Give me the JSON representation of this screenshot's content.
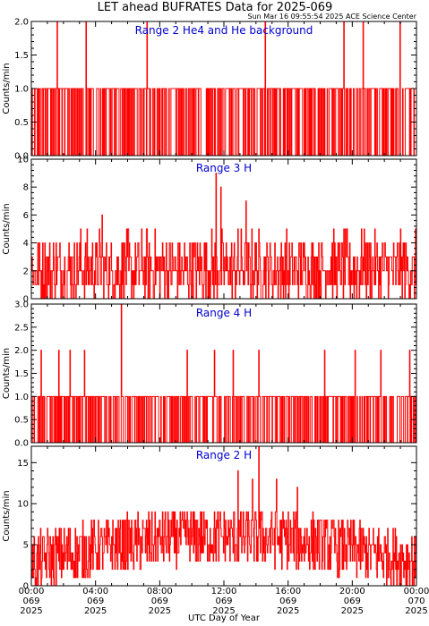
{
  "title": "LET ahead BUFRATES Data for 2025-069",
  "subtitle": "Sun Mar 16 09:55:54 2025 ACE Science Center",
  "xlabel": "UTC Day of Year",
  "x_ticks": [
    [
      "00:00",
      "069",
      "2025"
    ],
    [
      "04:00",
      "069",
      "2025"
    ],
    [
      "08:00",
      "069",
      "2025"
    ],
    [
      "12:00",
      "069",
      "2025"
    ],
    [
      "16:00",
      "069",
      "2025"
    ],
    [
      "20:00",
      "069",
      "2025"
    ],
    [
      "00:00",
      "070",
      "2025"
    ]
  ],
  "colors": {
    "series": "#ff0000",
    "panel_title": "#0000d0"
  },
  "chart_data": [
    {
      "type": "line",
      "title": "Range 2 He4 and He background",
      "ylabel": "Counts/min",
      "ylim": [
        0,
        2.0
      ],
      "yticks": [
        "0.0",
        "0.5",
        "1.0",
        "1.5",
        "2.0"
      ],
      "x_range_hours": [
        0,
        24
      ],
      "series": [
        {
          "color": "#ff0000",
          "typical_range": [
            0,
            1
          ],
          "spikes": [
            {
              "hour": 1.6,
              "value": 2
            },
            {
              "hour": 3.4,
              "value": 2
            },
            {
              "hour": 7.2,
              "value": 2
            },
            {
              "hour": 14.6,
              "value": 2
            },
            {
              "hour": 19.5,
              "value": 2
            },
            {
              "hour": 20.7,
              "value": 2
            },
            {
              "hour": 23.0,
              "value": 2
            }
          ]
        }
      ]
    },
    {
      "type": "line",
      "title": "Range 3 H",
      "ylabel": "Counts/min",
      "ylim": [
        0,
        10
      ],
      "yticks": [
        "0",
        "2",
        "4",
        "6",
        "8",
        "10"
      ],
      "x_range_hours": [
        0,
        24
      ],
      "series": [
        {
          "color": "#ff0000",
          "typical_range": [
            0,
            4
          ],
          "spikes": [
            {
              "hour": 11.5,
              "value": 9
            },
            {
              "hour": 11.8,
              "value": 8
            },
            {
              "hour": 4.4,
              "value": 6
            },
            {
              "hour": 13.4,
              "value": 7
            }
          ]
        }
      ]
    },
    {
      "type": "line",
      "title": "Range 4 H",
      "ylabel": "Counts/min",
      "ylim": [
        0,
        3.0
      ],
      "yticks": [
        "0.0",
        "0.5",
        "1.0",
        "1.5",
        "2.0",
        "2.5",
        "3.0"
      ],
      "x_range_hours": [
        0,
        24
      ],
      "series": [
        {
          "color": "#ff0000",
          "typical_range": [
            0,
            1
          ],
          "spikes": [
            {
              "hour": 5.6,
              "value": 3
            },
            {
              "hour": 0.6,
              "value": 2
            },
            {
              "hour": 1.7,
              "value": 2
            },
            {
              "hour": 2.4,
              "value": 2
            },
            {
              "hour": 3.3,
              "value": 2
            },
            {
              "hour": 9.7,
              "value": 2
            },
            {
              "hour": 11.4,
              "value": 2
            },
            {
              "hour": 12.6,
              "value": 2
            },
            {
              "hour": 14.2,
              "value": 2
            },
            {
              "hour": 18.3,
              "value": 2
            },
            {
              "hour": 20.2,
              "value": 2
            },
            {
              "hour": 21.8,
              "value": 2
            },
            {
              "hour": 23.6,
              "value": 2
            }
          ]
        }
      ]
    },
    {
      "type": "line",
      "title": "Range 2 H",
      "ylabel": "Counts/min",
      "ylim": [
        0,
        17
      ],
      "yticks": [
        "0",
        "5",
        "10",
        "15"
      ],
      "x_range_hours": [
        0,
        24
      ],
      "series": [
        {
          "color": "#ff0000",
          "typical_range": [
            1,
            9
          ],
          "spikes": [
            {
              "hour": 12.9,
              "value": 14
            },
            {
              "hour": 14.2,
              "value": 17
            },
            {
              "hour": 13.8,
              "value": 13
            },
            {
              "hour": 15.3,
              "value": 13
            },
            {
              "hour": 16.6,
              "value": 12
            }
          ]
        }
      ]
    }
  ]
}
